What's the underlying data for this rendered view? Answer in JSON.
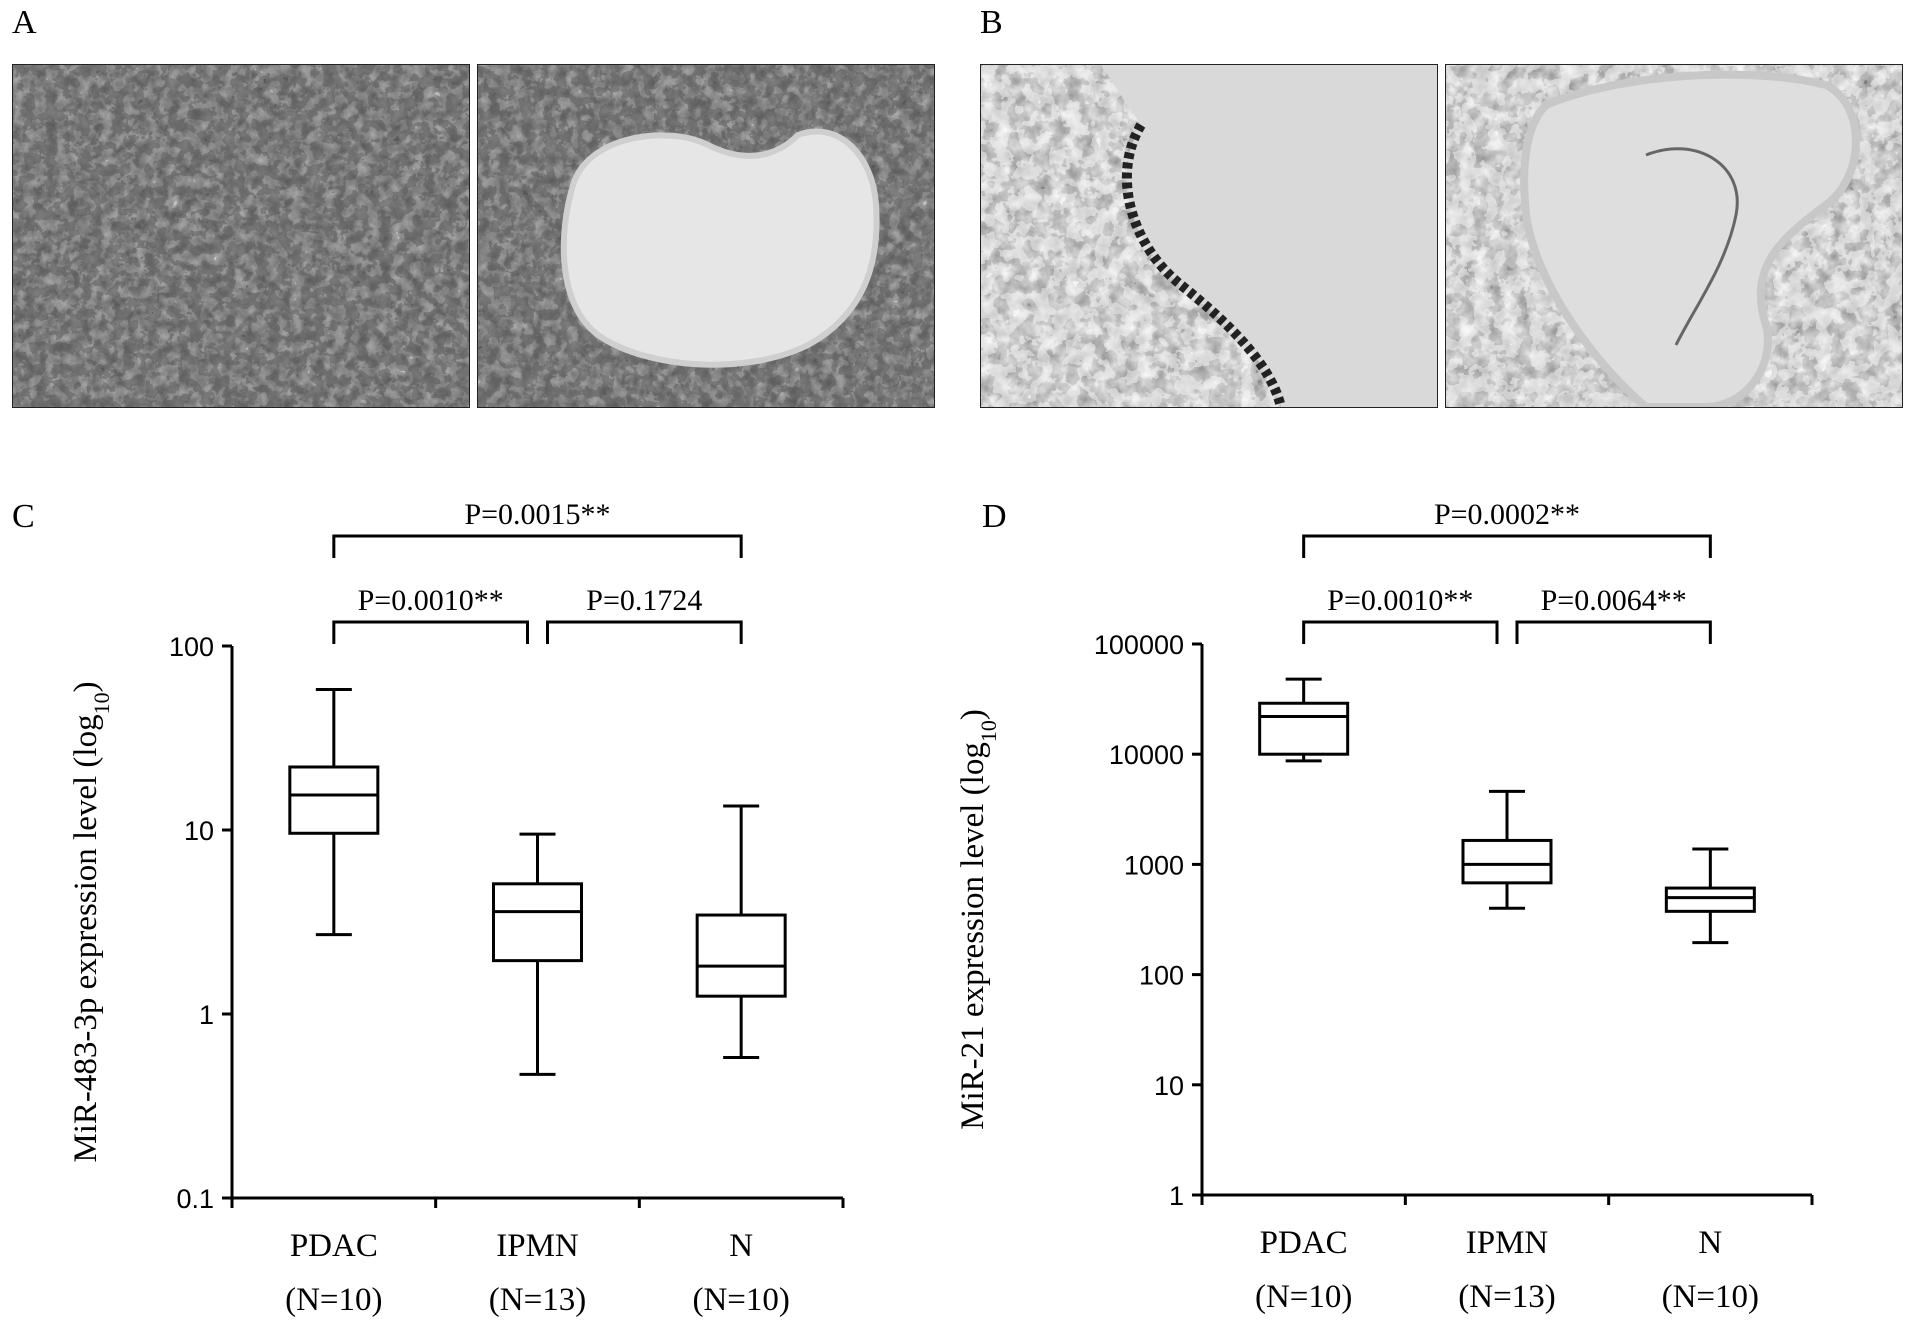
{
  "panels": {
    "a": {
      "letter": "A"
    },
    "b": {
      "letter": "B"
    },
    "c": {
      "letter": "C"
    },
    "d": {
      "letter": "D"
    }
  },
  "chart_data": [
    {
      "type": "box",
      "panel": "C",
      "ylabel": "MiR-483-3p expression level (log",
      "ylabel_sub": "10",
      "ylabel_close": ")",
      "yscale": "log",
      "ylim": [
        0.1,
        100
      ],
      "yticks": [
        "0.1",
        "1",
        "10",
        "100"
      ],
      "categories": [
        {
          "name": "PDAC",
          "n": "(N=10)"
        },
        {
          "name": "IPMN",
          "n": "(N=13)"
        },
        {
          "name": "N",
          "n": "(N=10)"
        }
      ],
      "boxes": [
        {
          "whisker_low": 2.7,
          "q1": 9.6,
          "median": 15.5,
          "q3": 22,
          "whisker_high": 58
        },
        {
          "whisker_low": 0.47,
          "q1": 1.95,
          "median": 3.6,
          "q3": 5.1,
          "whisker_high": 9.5
        },
        {
          "whisker_low": 0.58,
          "q1": 1.25,
          "median": 1.82,
          "q3": 3.45,
          "whisker_high": 13.5
        }
      ],
      "comparisons": [
        {
          "from": 0,
          "to": 2,
          "label": "P=0.0015**"
        },
        {
          "from": 0,
          "to": 1,
          "label": "P=0.0010**"
        },
        {
          "from": 1,
          "to": 2,
          "label": "P=0.1724"
        }
      ]
    },
    {
      "type": "box",
      "panel": "D",
      "ylabel": "MiR-21 expression level (log",
      "ylabel_sub": "10",
      "ylabel_close": ")",
      "yscale": "log",
      "ylim": [
        1,
        100000
      ],
      "yticks": [
        "1",
        "10",
        "100",
        "1000",
        "10000",
        "100000"
      ],
      "categories": [
        {
          "name": "PDAC",
          "n": "(N=10)"
        },
        {
          "name": "IPMN",
          "n": "(N=13)"
        },
        {
          "name": "N",
          "n": "(N=10)"
        }
      ],
      "boxes": [
        {
          "whisker_low": 8700,
          "q1": 10000,
          "median": 22000,
          "q3": 29000,
          "whisker_high": 48000
        },
        {
          "whisker_low": 400,
          "q1": 680,
          "median": 1000,
          "q3": 1650,
          "whisker_high": 4600
        },
        {
          "whisker_low": 195,
          "q1": 375,
          "median": 500,
          "q3": 610,
          "whisker_high": 1380
        }
      ],
      "comparisons": [
        {
          "from": 0,
          "to": 2,
          "label": "P=0.0002**"
        },
        {
          "from": 0,
          "to": 1,
          "label": "P=0.0010**"
        },
        {
          "from": 1,
          "to": 2,
          "label": "P=0.0064**"
        }
      ]
    }
  ]
}
